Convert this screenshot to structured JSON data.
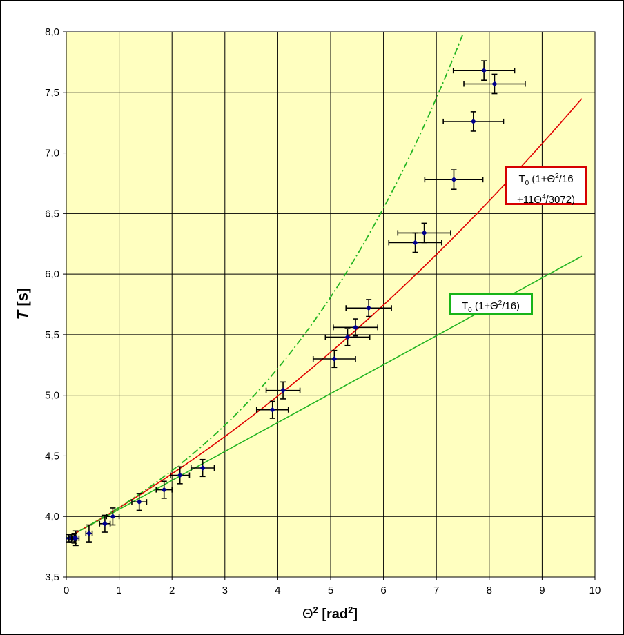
{
  "chart_data": {
    "type": "scatter",
    "title": "",
    "xlabel": "Θ²  [rad²]",
    "ylabel": "T  [s]",
    "xlim": [
      0,
      10
    ],
    "ylim": [
      3.5,
      8.0
    ],
    "x_ticks": [
      "0",
      "1",
      "2",
      "3",
      "4",
      "5",
      "6",
      "7",
      "8",
      "9",
      "10"
    ],
    "y_ticks": [
      "3,5",
      "4,0",
      "4,5",
      "5,0",
      "5,5",
      "6,0",
      "6,5",
      "7,0",
      "7,5",
      "8,0"
    ],
    "grid": true,
    "plot_background": "#ffffc0",
    "series": [
      {
        "kind": "points_with_error_bars",
        "color": "#00008b",
        "points": [
          {
            "x": 0.05,
            "y": 3.82,
            "xerr": 0.05,
            "yerr": 0.03
          },
          {
            "x": 0.1,
            "y": 3.82,
            "xerr": 0.05,
            "yerr": 0.03
          },
          {
            "x": 0.15,
            "y": 3.82,
            "xerr": 0.05,
            "yerr": 0.04
          },
          {
            "x": 0.18,
            "y": 3.82,
            "xerr": 0.06,
            "yerr": 0.06
          },
          {
            "x": 0.43,
            "y": 3.86,
            "xerr": 0.06,
            "yerr": 0.07
          },
          {
            "x": 0.73,
            "y": 3.94,
            "xerr": 0.1,
            "yerr": 0.07
          },
          {
            "x": 0.88,
            "y": 4.0,
            "xerr": 0.12,
            "yerr": 0.07
          },
          {
            "x": 1.38,
            "y": 4.12,
            "xerr": 0.14,
            "yerr": 0.07
          },
          {
            "x": 1.85,
            "y": 4.22,
            "xerr": 0.15,
            "yerr": 0.07
          },
          {
            "x": 2.15,
            "y": 4.34,
            "xerr": 0.18,
            "yerr": 0.07
          },
          {
            "x": 2.58,
            "y": 4.4,
            "xerr": 0.22,
            "yerr": 0.07
          },
          {
            "x": 3.9,
            "y": 4.88,
            "xerr": 0.3,
            "yerr": 0.07
          },
          {
            "x": 4.1,
            "y": 5.04,
            "xerr": 0.32,
            "yerr": 0.07
          },
          {
            "x": 5.07,
            "y": 5.3,
            "xerr": 0.4,
            "yerr": 0.07
          },
          {
            "x": 5.32,
            "y": 5.48,
            "xerr": 0.42,
            "yerr": 0.07
          },
          {
            "x": 5.47,
            "y": 5.56,
            "xerr": 0.42,
            "yerr": 0.07
          },
          {
            "x": 5.72,
            "y": 5.72,
            "xerr": 0.43,
            "yerr": 0.07
          },
          {
            "x": 6.6,
            "y": 6.26,
            "xerr": 0.5,
            "yerr": 0.08
          },
          {
            "x": 6.77,
            "y": 6.34,
            "xerr": 0.5,
            "yerr": 0.08
          },
          {
            "x": 7.33,
            "y": 6.78,
            "xerr": 0.55,
            "yerr": 0.08
          },
          {
            "x": 7.7,
            "y": 7.26,
            "xerr": 0.57,
            "yerr": 0.08
          },
          {
            "x": 7.9,
            "y": 7.68,
            "xerr": 0.58,
            "yerr": 0.08
          },
          {
            "x": 8.1,
            "y": 7.57,
            "xerr": 0.58,
            "yerr": 0.08
          }
        ]
      },
      {
        "kind": "curve",
        "color": "#e00000",
        "style": "solid",
        "formula": "T0 (1+Θ²/16 +11Θ⁴/3072)",
        "T0": 3.82,
        "x_range": [
          0,
          9.75
        ]
      },
      {
        "kind": "curve",
        "color": "#22b422",
        "style": "solid",
        "formula": "T0 (1+Θ²/16)",
        "T0": 3.82,
        "x_range": [
          0,
          9.75
        ]
      },
      {
        "kind": "curve",
        "color": "#22b422",
        "style": "dash-dot",
        "x_range": [
          0,
          8.3
        ]
      }
    ],
    "legend_red": {
      "line1_a": "T",
      "line1_sub": "0",
      "line1_b": " (1+Θ",
      "line1_sup": "2",
      "line1_c": "/16",
      "line2_a": "+11Θ",
      "line2_sup": "4",
      "line2_b": "/3072)"
    },
    "legend_green": {
      "a": "T",
      "sub": "0",
      "b": " (1+Θ",
      "sup": "2",
      "c": "/16)"
    }
  }
}
